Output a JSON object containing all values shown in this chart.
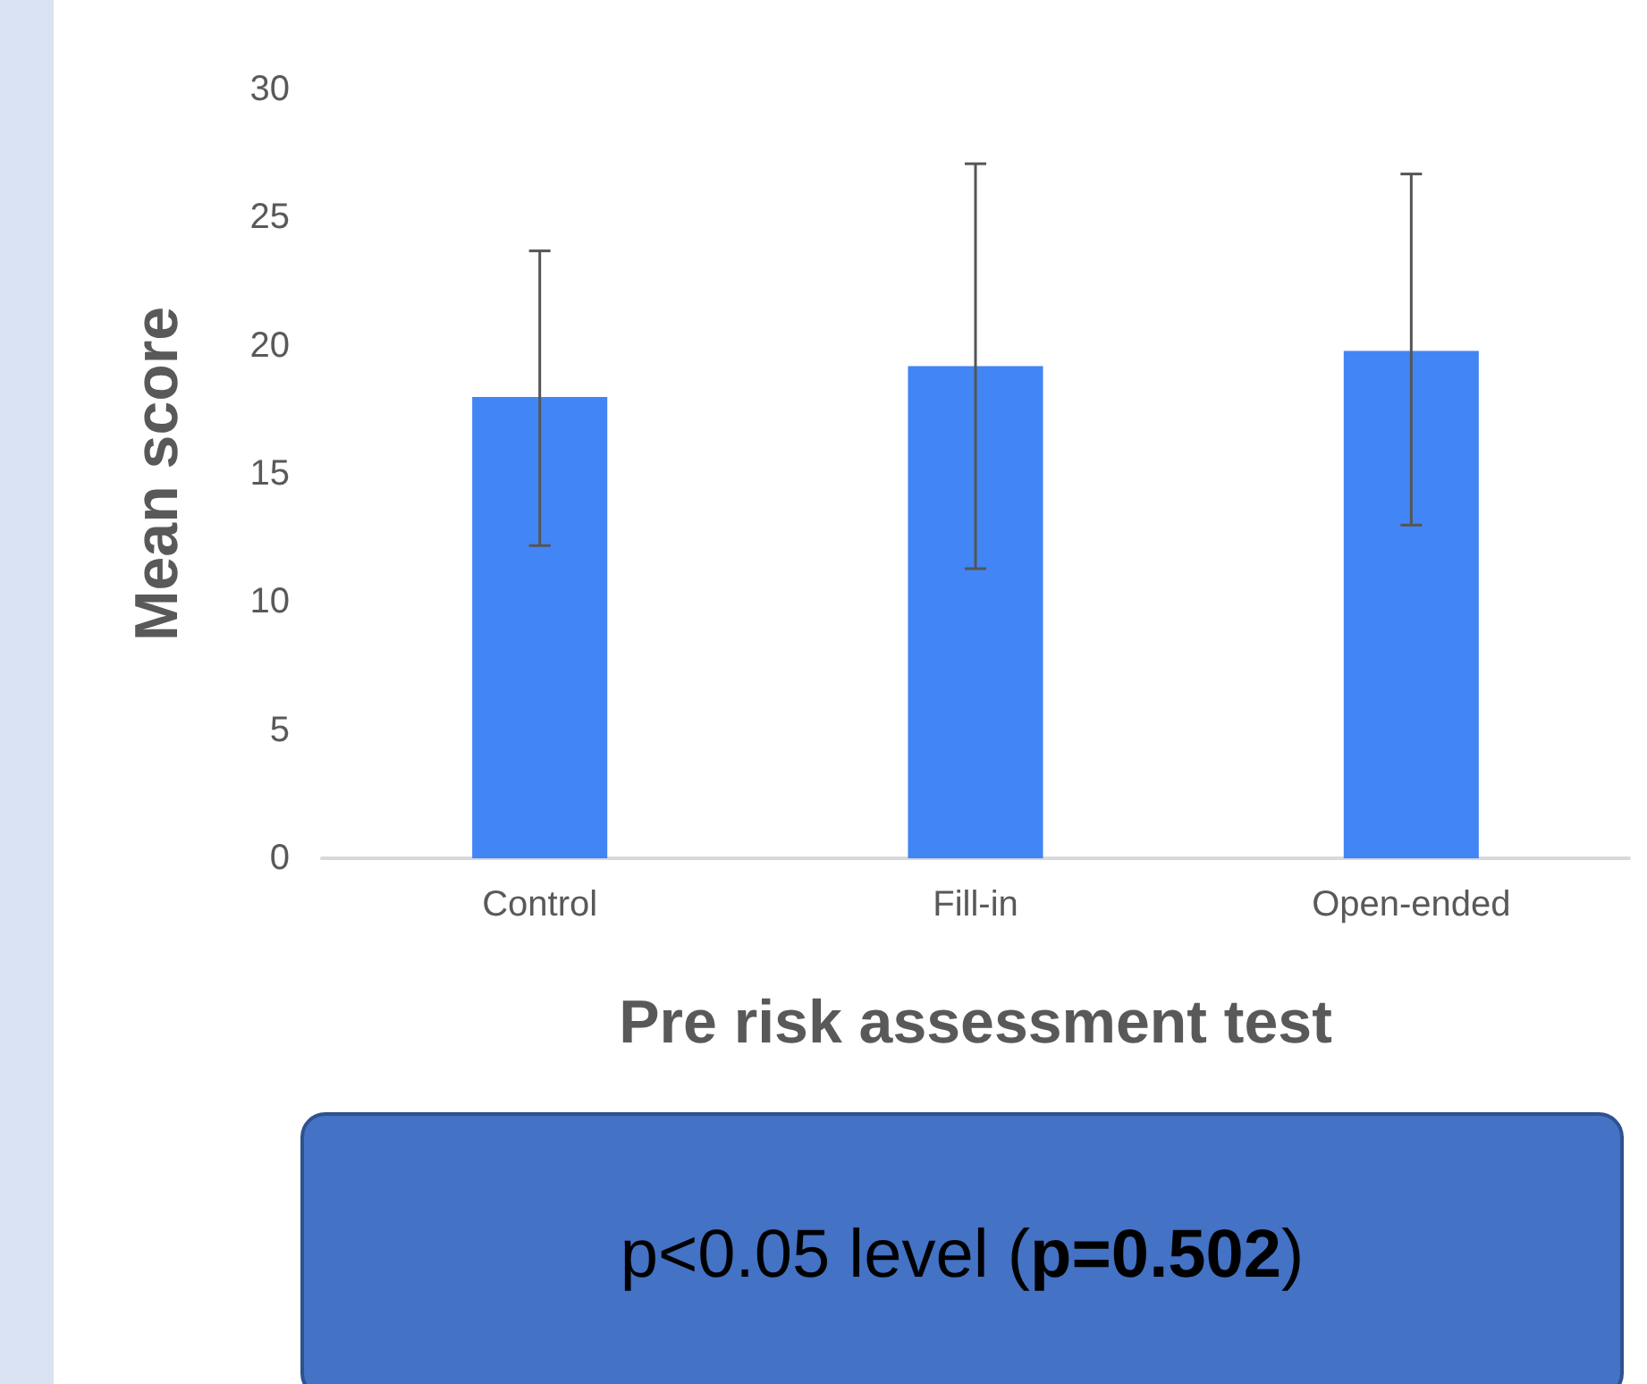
{
  "chart_data": {
    "type": "bar",
    "xlabel": "Pre risk assessment test",
    "ylabel": "Mean score",
    "categories": [
      "Control",
      "Fill-in",
      "Open-ended"
    ],
    "series": [
      {
        "color": "#4285f4",
        "values": [
          18,
          19.2,
          19.8
        ],
        "errors": [
          [
            12.2,
            23.7
          ],
          [
            11.3,
            27.1
          ],
          [
            13,
            26.7
          ]
        ]
      }
    ],
    "ylim": [
      0,
      30
    ],
    "yticks": [
      0,
      5,
      10,
      15,
      20,
      25,
      30
    ],
    "grid": false,
    "annotations": [
      "p<0.05 level (p=0.502)"
    ]
  }
}
